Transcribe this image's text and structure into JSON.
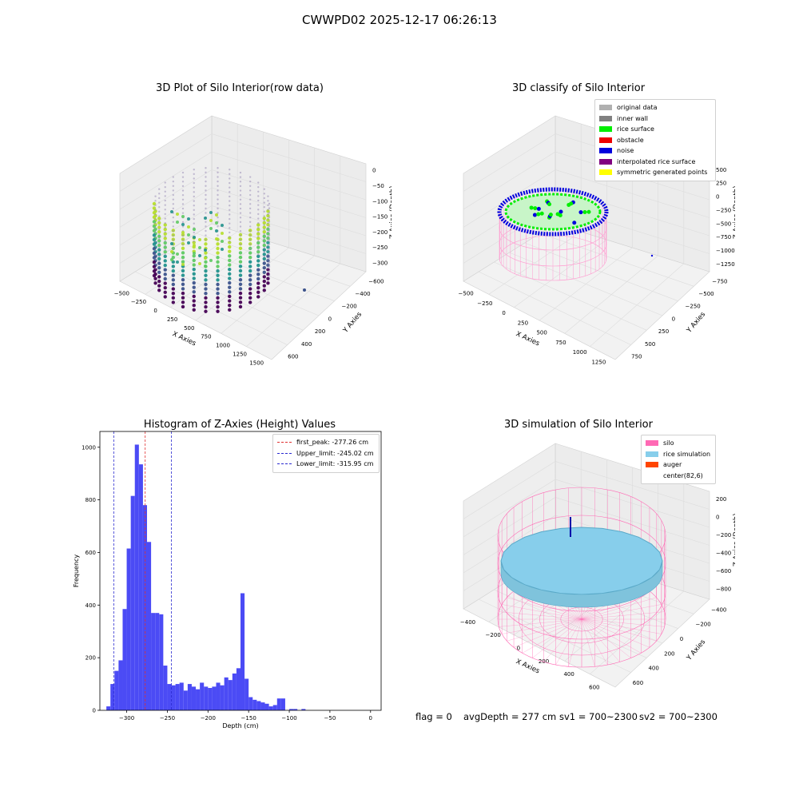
{
  "suptitle": "CWWPD02 2025-12-17 06:26:13",
  "colors": {
    "pane": "#f2f2f2",
    "grid": "#dcdcdc",
    "hist_bar": "#4b4bf5",
    "first_peak": "#e03030",
    "limits": "#2a2ad0",
    "silo": "#ff69b4",
    "rice_simulation": "#87ceeb",
    "auger": "#ff4500",
    "noise": "#0000dd",
    "rice_surface": "#00ee00"
  },
  "panel_raw": {
    "title": "3D Plot of Silo Interior(row data)",
    "xlabel": "X Axies",
    "ylabel": "Y Axies",
    "zlabel": "Z Axies (Depth)",
    "xticks": [
      "−500",
      "−250",
      "0",
      "250",
      "500",
      "750",
      "1000",
      "1250",
      "1500"
    ],
    "yticks": [
      "−600",
      "−400",
      "−200",
      "0",
      "200",
      "400",
      "600"
    ],
    "zticks": [
      "0",
      "−50",
      "−100",
      "−150",
      "−200",
      "−250",
      "−300"
    ]
  },
  "panel_classify": {
    "title": "3D classify of Silo Interior",
    "xlabel": "X Axies",
    "ylabel": "Y Axies",
    "zlabel": "Z Axies (Depth)",
    "xticks": [
      "−500",
      "−250",
      "0",
      "250",
      "500",
      "750",
      "1000",
      "1250"
    ],
    "yticks": [
      "−750",
      "−500",
      "−250",
      "0",
      "250",
      "500",
      "750"
    ],
    "zticks": [
      "500",
      "250",
      "0",
      "−250",
      "−500",
      "−750",
      "−1000",
      "−1250"
    ],
    "legend": [
      {
        "label": "original data",
        "color": "#b0b0b0"
      },
      {
        "label": "inner wall",
        "color": "#808080"
      },
      {
        "label": "rice surface",
        "color": "#00ee00"
      },
      {
        "label": "obstacle",
        "color": "#ee0000"
      },
      {
        "label": "noise",
        "color": "#0000dd"
      },
      {
        "label": "interpolated rice surface",
        "color": "#800080"
      },
      {
        "label": "symmetric generated points",
        "color": "#ffff00"
      }
    ]
  },
  "panel_sim": {
    "title": "3D simulation of Silo Interior",
    "xlabel": "X Axies",
    "ylabel": "Y Axies",
    "zlabel": "Z Axies (Depth)",
    "xticks": [
      "−400",
      "−200",
      "0",
      "200",
      "400",
      "600"
    ],
    "yticks": [
      "−400",
      "−200",
      "0",
      "200",
      "400",
      "600"
    ],
    "zticks": [
      "200",
      "0",
      "−200",
      "−400",
      "−600",
      "−800"
    ],
    "legend": [
      {
        "label": "silo",
        "color": "#ff69b4"
      },
      {
        "label": "rice simulation",
        "color": "#87ceeb"
      },
      {
        "label": "auger",
        "color": "#ff4500"
      },
      {
        "label": "center(82,6)",
        "color": ""
      }
    ]
  },
  "chart_data": {
    "type": "bar",
    "title": "Histogram of Z-Axies (Height) Values",
    "xlabel": "Depth (cm)",
    "ylabel": "Frequency",
    "xlim": [
      -333,
      13
    ],
    "ylim": [
      0,
      1060
    ],
    "xticks": [
      -300,
      -250,
      -200,
      -150,
      -100,
      -50,
      0
    ],
    "yticks": [
      0,
      200,
      400,
      600,
      800,
      1000
    ],
    "bin_start": -325,
    "bin_width": 5,
    "values": [
      15,
      100,
      150,
      190,
      385,
      615,
      815,
      1010,
      935,
      780,
      640,
      370,
      370,
      365,
      170,
      100,
      95,
      100,
      105,
      75,
      100,
      90,
      80,
      105,
      90,
      85,
      90,
      105,
      95,
      125,
      115,
      140,
      160,
      445,
      120,
      50,
      40,
      35,
      30,
      25,
      15,
      20,
      45,
      45,
      0,
      5,
      5,
      0,
      5
    ],
    "lines": [
      {
        "label": "first_peak: -277.26 cm",
        "x": -277.26,
        "color": "#e03030"
      },
      {
        "label": "Upper_limit: -245.02 cm",
        "x": -245.02,
        "color": "#2a2ad0"
      },
      {
        "label": "Lower_limit: -315.95 cm",
        "x": -315.95,
        "color": "#2a2ad0"
      }
    ]
  },
  "footer": {
    "flag": "flag = 0",
    "avg": "avgDepth = 277 cm",
    "sv1": "sv1 = 700~2300",
    "sv2": "sv2 = 700~2300"
  }
}
